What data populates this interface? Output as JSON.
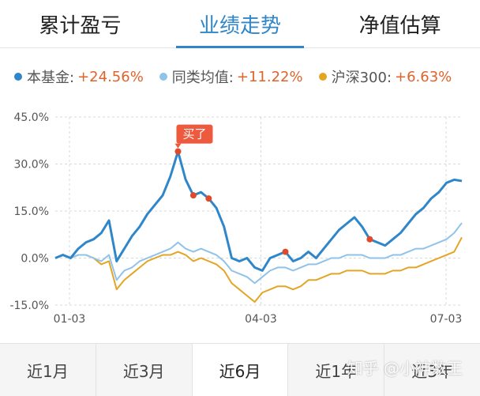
{
  "tabs": [
    {
      "label": "累计盈亏"
    },
    {
      "label": "业绩走势"
    },
    {
      "label": "净值估算"
    }
  ],
  "legend": [
    {
      "name": "本基金:",
      "value": "+24.56%",
      "color": "#2f86c9"
    },
    {
      "name": "同类均值:",
      "value": "+11.22%",
      "color": "#8fc3ea"
    },
    {
      "name": "沪深300:",
      "value": "+6.63%",
      "color": "#e4a525"
    }
  ],
  "chart_data": {
    "type": "line",
    "y_ticks": [
      "45.0%",
      "30.0%",
      "15.0%",
      "0.0%",
      "-15.0%"
    ],
    "ylim": [
      -15,
      45
    ],
    "x_ticks": [
      "01-03",
      "04-03",
      "07-03"
    ],
    "annotation": "买了",
    "series": [
      {
        "name": "本基金",
        "color": "#2f86c9",
        "values": [
          0,
          1,
          0,
          3,
          5,
          6,
          8,
          12,
          -1,
          3,
          7,
          10,
          14,
          17,
          20,
          26,
          34,
          25,
          20,
          21,
          19,
          16,
          10,
          0,
          -1,
          0,
          -3,
          -4,
          0,
          1,
          2,
          -1,
          0,
          2,
          0,
          3,
          6,
          9,
          11,
          13,
          10,
          6,
          5,
          4,
          6,
          8,
          11,
          14,
          16,
          19,
          21,
          24,
          25,
          24.6
        ]
      },
      {
        "name": "同类均值",
        "color": "#8fc3ea",
        "values": [
          0,
          1,
          0,
          1,
          1,
          0,
          -1,
          1,
          -7,
          -4,
          -3,
          -1,
          0,
          1,
          2,
          3,
          5,
          3,
          2,
          3,
          2,
          1,
          -1,
          -4,
          -5,
          -6,
          -8,
          -6,
          -4,
          -3,
          -3,
          -4,
          -3,
          -2,
          -2,
          -1,
          0,
          0,
          1,
          1,
          1,
          0,
          0,
          0,
          1,
          1,
          2,
          3,
          3,
          4,
          5,
          6,
          8,
          11.2
        ]
      },
      {
        "name": "沪深300",
        "color": "#e4a525",
        "values": [
          0,
          1,
          0,
          1,
          1,
          0,
          -2,
          -1,
          -10,
          -7,
          -5,
          -3,
          -1,
          0,
          1,
          1,
          2,
          1,
          -1,
          0,
          -1,
          -2,
          -4,
          -8,
          -10,
          -12,
          -14,
          -11,
          -10,
          -9,
          -9,
          -10,
          -9,
          -7,
          -7,
          -6,
          -5,
          -5,
          -4,
          -4,
          -4,
          -5,
          -5,
          -5,
          -4,
          -4,
          -3,
          -3,
          -2,
          -1,
          0,
          1,
          2,
          6.6
        ]
      }
    ],
    "markers": [
      {
        "series": 0,
        "index": 16
      },
      {
        "series": 0,
        "index": 18
      },
      {
        "series": 0,
        "index": 20
      },
      {
        "series": 0,
        "index": 30
      },
      {
        "series": 0,
        "index": 41
      }
    ]
  },
  "periods": [
    {
      "label": "近1月"
    },
    {
      "label": "近3月"
    },
    {
      "label": "近6月"
    },
    {
      "label": "近1年"
    },
    {
      "label": "近3年"
    }
  ],
  "watermark": "知乎 @小神数王"
}
